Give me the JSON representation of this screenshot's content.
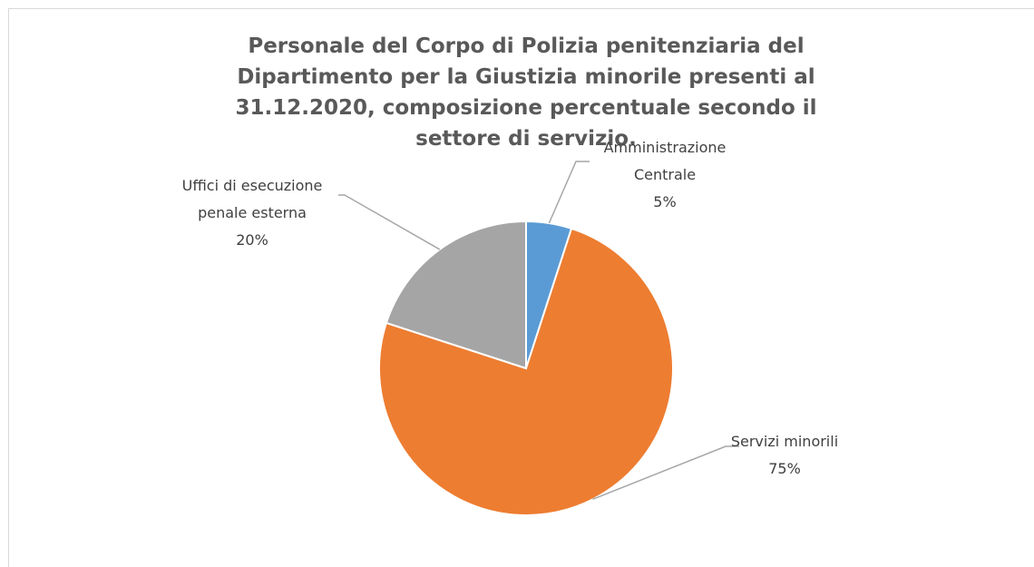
{
  "chart_data": {
    "type": "pie",
    "title": "Personale del Corpo di Polizia penitenziaria del Dipartimento per la Giustizia minorile presenti al 31.12.2020, composizione percentuale secondo il settore di servizio.",
    "categories": [
      "Amministrazione Centrale",
      "Servizi minorili",
      "Uffici di esecuzione penale esterna"
    ],
    "values": [
      5,
      75,
      20
    ],
    "value_labels": [
      "5%",
      "75%",
      "20%"
    ],
    "colors": [
      "#5b9bd5",
      "#ed7d31",
      "#a5a5a5"
    ]
  }
}
